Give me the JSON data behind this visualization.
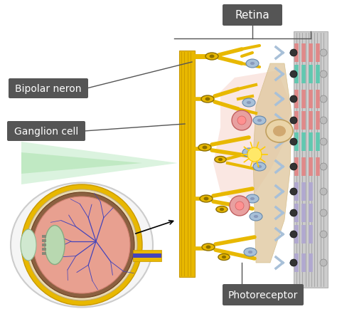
{
  "bg_color": "#ffffff",
  "labels": {
    "retina": "Retina",
    "bipolar_neron": "Bipolar neron",
    "ganglion_cell": "Ganglion cell",
    "photoreceptor": "Photoreceptor"
  },
  "label_box_color": "#555555",
  "label_text_color": "#ffffff",
  "nerve_color": "#E8B800",
  "nerve_dark": "#C89800",
  "neuron_yellow_fill": "#E8B800",
  "neuron_yellow_dark": "#8B6E00",
  "neuron_blue_fill": "#a8c0d8",
  "neuron_blue_dark": "#6688aa",
  "neuron_pink_fill": "#e8a0a0",
  "neuron_pink_dark": "#c06060",
  "neuron_green_fill": "#60c8b0",
  "neuron_green_dark": "#30a080",
  "neuron_purple_fill": "#b0a8d0",
  "neuron_purple_dark": "#7060a0",
  "neuron_beige_fill": "#e8d8b0",
  "neuron_beige_dark": "#c0a870",
  "wall_color": "#cccccc",
  "wall_line_color": "#aaaaaa",
  "spine_color": "#e0c8a0",
  "pink_bg_color": "#f8d8d0",
  "light_beam_color": "#b8e8c0",
  "light_beam_alpha": 0.5,
  "leader_color": "#555555"
}
